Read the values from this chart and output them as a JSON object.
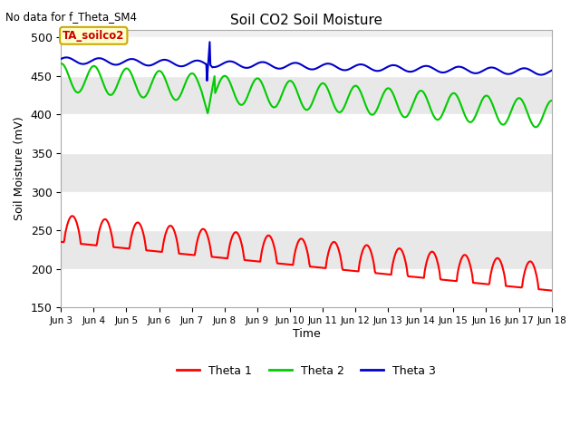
{
  "title": "Soil CO2 Soil Moisture",
  "ylabel": "Soil Moisture (mV)",
  "xlabel": "Time",
  "top_label": "No data for f_Theta_SM4",
  "annotation_text": "TA_soilco2",
  "ylim": [
    150,
    510
  ],
  "yticks": [
    150,
    200,
    250,
    300,
    350,
    400,
    450,
    500
  ],
  "x_tick_labels": [
    "Jun 3",
    "Jun 4",
    "Jun 5",
    "Jun 6",
    "Jun 7",
    "Jun 8",
    "Jun 9",
    "Jun 10",
    "Jun 11",
    "Jun 12",
    "Jun 13",
    "Jun 14",
    "Jun 15",
    "Jun 16",
    "Jun 17",
    "Jun 18"
  ],
  "bg_color": "#ffffff",
  "plot_bg_color": "#f0f0f0",
  "line_colors": {
    "theta1": "#ff0000",
    "theta2": "#00cc00",
    "theta3": "#0000cc"
  },
  "legend_labels": [
    "Theta 1",
    "Theta 2",
    "Theta 3"
  ],
  "annotation_box_facecolor": "#ffffcc",
  "annotation_box_edgecolor": "#ccaa00",
  "annotation_text_color": "#cc0000",
  "grid_color": "#ffffff",
  "band_color": "#e8e8e8"
}
